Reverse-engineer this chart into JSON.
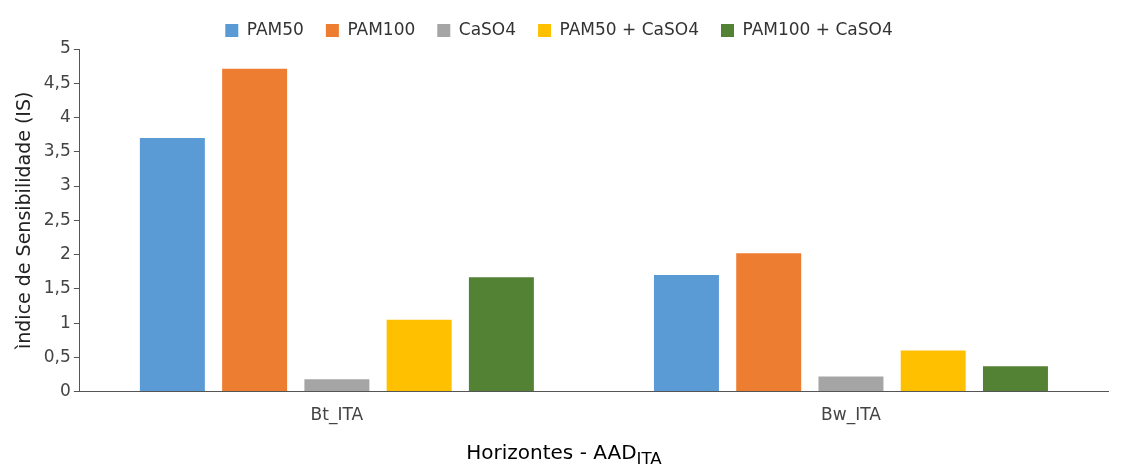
{
  "chart_data": {
    "type": "bar",
    "xlabel": "Horizontes - AAD$_{ITA}$",
    "ylabel": "ìndice de Sensibilidade (IS)",
    "categories": [
      "Bt_ITA",
      "Bw_ITA"
    ],
    "series": [
      {
        "name": "PAM50",
        "color": "#5b9bd5",
        "values": [
          3.7,
          1.7
        ]
      },
      {
        "name": "PAM100",
        "color": "#ed7d31",
        "values": [
          4.71,
          2.02
        ]
      },
      {
        "name": "CaSO4",
        "color": "#a5a5a5",
        "values": [
          0.18,
          0.22
        ]
      },
      {
        "name": "PAM50 + CaSO4",
        "color": "#ffc000",
        "values": [
          1.05,
          0.6
        ]
      },
      {
        "name": "PAM100 + CaSO4",
        "color": "#548235",
        "values": [
          1.67,
          0.37
        ]
      }
    ],
    "ylim": [
      0,
      5
    ],
    "yticks": [
      0,
      {
        "value": 0.5,
        "label": "0,5"
      },
      1,
      {
        "value": 1.5,
        "label": "1,5"
      },
      2,
      {
        "value": 2.5,
        "label": "2,5"
      },
      3,
      {
        "value": 3.5,
        "label": "3,5"
      },
      4,
      {
        "value": 4.5,
        "label": "4,5"
      },
      5
    ],
    "grid": false,
    "legend": "top"
  }
}
